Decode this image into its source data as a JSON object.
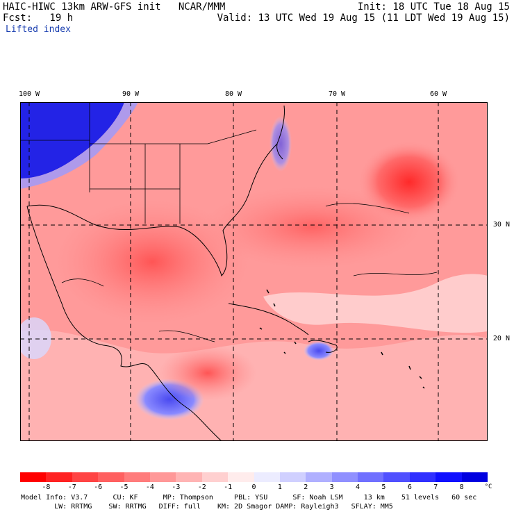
{
  "header": {
    "model_line": "HAIC-HIWC 13km ARW-GFS init   NCAR/MMM",
    "init_line": "Init: 18 UTC Tue 18 Aug 15",
    "fcst_line": "Fcst:   19 h",
    "valid_line": "Valid: 13 UTC Wed 19 Aug 15 (11 LDT Wed 19 Aug 15)",
    "field_name": "Lifted index"
  },
  "map": {
    "lon_labels": [
      "100 W",
      "90 W",
      "80 W",
      "70 W",
      "60 W"
    ],
    "lat_labels": [
      "30 N",
      "20 N"
    ]
  },
  "colorbar": {
    "tick_labels": [
      "-8",
      "-7",
      "-6",
      "-5",
      "-4",
      "-3",
      "-2",
      "-1",
      "0",
      "1",
      "2",
      "3",
      "4",
      "5",
      "6",
      "7",
      "8"
    ],
    "unit": "°C",
    "colors": [
      "#ff0000",
      "#ff2222",
      "#ff4444",
      "#ff6060",
      "#ff7c7c",
      "#ff9898",
      "#ffb4b4",
      "#ffd0d0",
      "#ffecec",
      "#ececff",
      "#d0d0ff",
      "#b0b0ff",
      "#9090ff",
      "#7070ff",
      "#5050ff",
      "#3030ff",
      "#1010ff",
      "#0000e0"
    ]
  },
  "model_info": {
    "line1": "Model Info: V3.7      CU: KF      MP: Thompson     PBL: YSU      SF: Noah LSM     13 km    51 levels   60 sec",
    "line2": "        LW: RRTMG    SW: RRTMG   DIFF: full    KM: 2D Smagor DAMP: Rayleigh3   SFLAY: MM5"
  }
}
